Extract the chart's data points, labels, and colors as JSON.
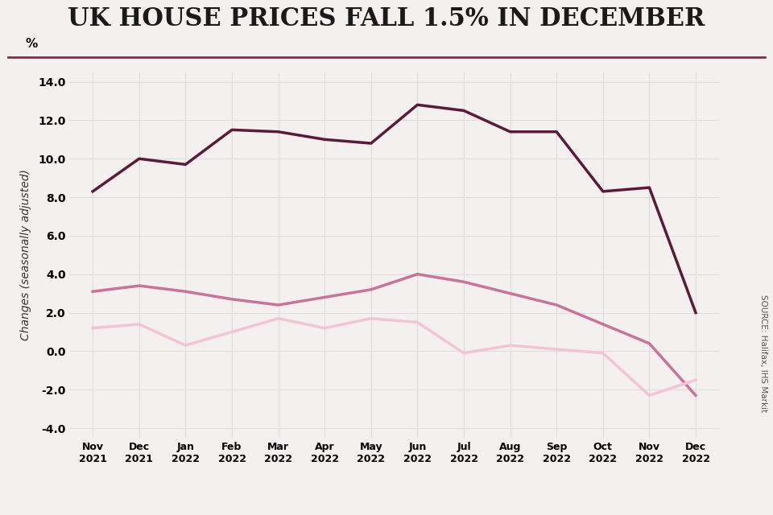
{
  "title": "UK HOUSE PRICES FALL 1.5% IN DECEMBER",
  "title_color": "#1a1a1a",
  "title_line_color": "#7a3050",
  "ylabel": "Changes (seasonally adjusted)",
  "ylabel_prefix": "%",
  "source": "SOURCE: Halifax, IHS Markit",
  "x_labels": [
    "Nov\n2021",
    "Dec\n2021",
    "Jan\n2022",
    "Feb\n2022",
    "Mar\n2022",
    "Apr\n2022",
    "May\n2022",
    "Jun\n2022",
    "Jul\n2022",
    "Aug\n2022",
    "Sep\n2022",
    "Oct\n2022",
    "Nov\n2022",
    "Dec\n2022"
  ],
  "ylim": [
    -4.5,
    14.5
  ],
  "yticks": [
    -4.0,
    -2.0,
    0.0,
    2.0,
    4.0,
    6.0,
    8.0,
    10.0,
    12.0,
    14.0
  ],
  "annual": [
    8.3,
    10.0,
    9.7,
    11.5,
    11.4,
    11.0,
    10.8,
    12.8,
    12.5,
    11.4,
    11.4,
    8.3,
    8.5,
    2.0
  ],
  "three_month": [
    3.1,
    3.4,
    3.1,
    2.7,
    2.4,
    2.8,
    3.2,
    4.0,
    3.6,
    3.0,
    2.4,
    1.4,
    0.4,
    -2.3
  ],
  "monthly": [
    1.2,
    1.4,
    0.3,
    1.0,
    1.7,
    1.2,
    1.7,
    1.5,
    -0.1,
    0.3,
    0.1,
    -0.1,
    -2.3,
    -1.5
  ],
  "annual_color": "#5c1a3a",
  "three_month_color": "#c9739b",
  "monthly_color": "#f2c4d5",
  "background_color": "#f5f0f0",
  "grid_color": "#dddddd",
  "line_width": 2.5
}
